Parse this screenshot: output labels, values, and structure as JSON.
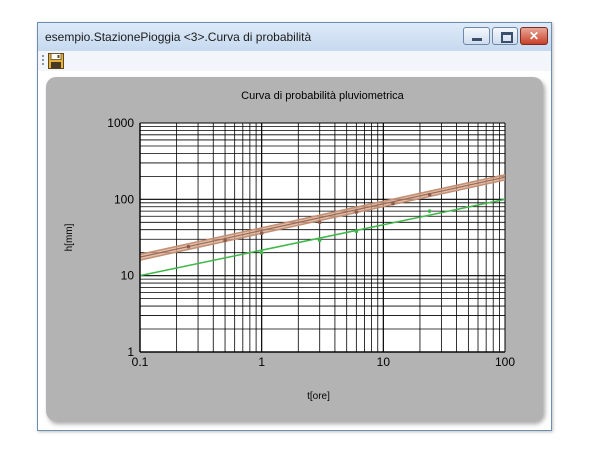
{
  "window": {
    "title": "esempio.StazionePioggia <3>.Curva di probabilità",
    "buttons": {
      "minimize": "minimize",
      "maximize": "maximize",
      "close": "✕"
    }
  },
  "toolbar": {
    "save_icon": "floppy-disk-save-icon"
  },
  "colors": {
    "panel_bg": "#b3b3b3",
    "plot_bg": "#ffffff",
    "grid": "#000000",
    "series_fill": "#d7a98f",
    "series_green": "#3fb84a",
    "close_button": "#c8412a"
  },
  "chart_data": {
    "type": "line",
    "title": "Curva di probabilità pluviometrica",
    "xlabel": "t[ore]",
    "ylabel": "h[mm]",
    "x_scale": "log",
    "y_scale": "log",
    "xlim": [
      0.1,
      100
    ],
    "ylim": [
      1,
      1000
    ],
    "x_ticks": [
      "0.1",
      "1",
      "10",
      "100"
    ],
    "y_ticks": [
      "1",
      "10",
      "100",
      "1000"
    ],
    "grid": true,
    "series": [
      {
        "x": [
          0.1,
          100
        ],
        "y": [
          16,
          180
        ],
        "style": "band-lower"
      },
      {
        "x": [
          0.1,
          100
        ],
        "y": [
          19,
          210
        ],
        "style": "band-upper"
      },
      {
        "x": [
          0.1,
          100
        ],
        "y": [
          17.5,
          195
        ],
        "style": "band-mid"
      },
      {
        "x": [
          0.1,
          100
        ],
        "y": [
          10,
          100
        ],
        "style": "green"
      }
    ],
    "points": [
      {
        "x": 0.25,
        "y": 24,
        "series": 2
      },
      {
        "x": 0.5,
        "y": 29,
        "series": 2
      },
      {
        "x": 1,
        "y": 36,
        "series": 2
      },
      {
        "x": 3,
        "y": 50,
        "series": 2
      },
      {
        "x": 6,
        "y": 68,
        "series": 2
      },
      {
        "x": 12,
        "y": 88,
        "series": 2
      },
      {
        "x": 24,
        "y": 115,
        "series": 2
      },
      {
        "x": 1,
        "y": 20,
        "series": 3
      },
      {
        "x": 3,
        "y": 29,
        "series": 3
      },
      {
        "x": 6,
        "y": 38,
        "series": 3
      },
      {
        "x": 24,
        "y": 70,
        "series": 3
      }
    ]
  }
}
